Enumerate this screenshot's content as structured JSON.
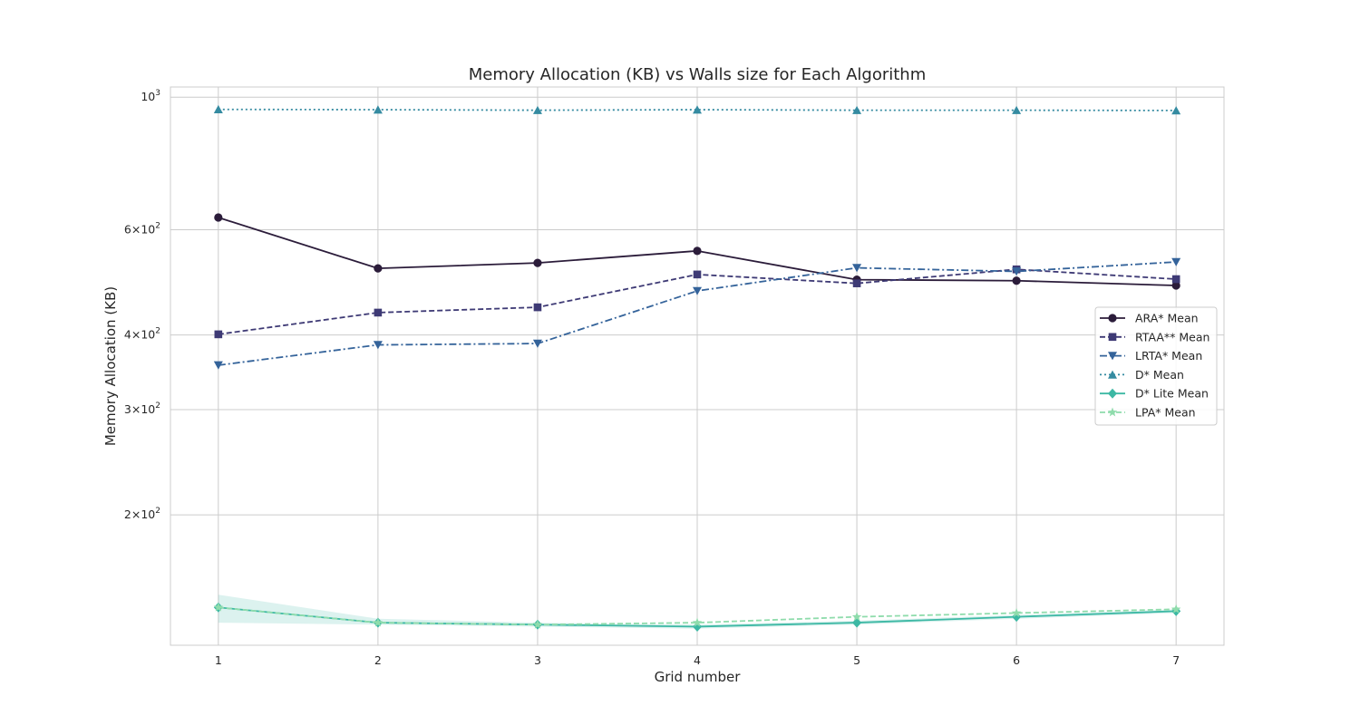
{
  "chart_data": {
    "type": "line",
    "title": "Memory Allocation (KB) vs Walls size for Each Algorithm",
    "xlabel": "Grid number",
    "ylabel": "Memory Allocation (KB)",
    "x": [
      1,
      2,
      3,
      4,
      5,
      6,
      7
    ],
    "y_scale": "log",
    "xlim": [
      0.7,
      7.3
    ],
    "ylim": [
      121,
      1040
    ],
    "y_ticks": [
      {
        "value": 200,
        "mantissa": "2",
        "base": "10",
        "exp": "2"
      },
      {
        "value": 300,
        "mantissa": "3",
        "base": "10",
        "exp": "2"
      },
      {
        "value": 400,
        "mantissa": "4",
        "base": "10",
        "exp": "2"
      },
      {
        "value": 600,
        "mantissa": "6",
        "base": "10",
        "exp": "2"
      },
      {
        "value": 1000,
        "mantissa": "",
        "base": "10",
        "exp": "3"
      }
    ],
    "grid": true,
    "legend_position": "center-right",
    "series": [
      {
        "name": "ARA* Mean",
        "values": [
          629,
          517,
          528,
          553,
          495,
          493,
          484
        ],
        "color": "#2b1c3a",
        "dash": "solid",
        "marker": "circle"
      },
      {
        "name": "RTAA** Mean",
        "values": [
          401,
          436,
          445,
          505,
          488,
          515,
          496
        ],
        "color": "#3e3a75",
        "dash": "dashed",
        "marker": "square"
      },
      {
        "name": "LRTA* Mean",
        "values": [
          356,
          385,
          387,
          474,
          518,
          511,
          530
        ],
        "color": "#34639a",
        "dash": "dashdot",
        "marker": "triangle-down"
      },
      {
        "name": "D* Mean",
        "values": [
          954,
          953,
          951,
          953,
          951,
          951,
          950
        ],
        "color": "#358ba1",
        "dash": "dotted",
        "marker": "triangle-up"
      },
      {
        "name": "D* Lite Mean",
        "values": [
          140,
          132,
          131,
          130,
          132,
          135,
          138
        ],
        "color": "#3cb8a4",
        "dash": "solid",
        "marker": "diamond",
        "band_lower": [
          132,
          131,
          130,
          129,
          131,
          134,
          137
        ],
        "band_upper": [
          147,
          134,
          132,
          131,
          133,
          136,
          139
        ]
      },
      {
        "name": "LPA* Mean",
        "values": [
          140,
          132,
          131,
          132,
          135,
          137,
          139
        ],
        "color": "#8fdcac",
        "dash": "dashed",
        "marker": "star"
      }
    ]
  }
}
